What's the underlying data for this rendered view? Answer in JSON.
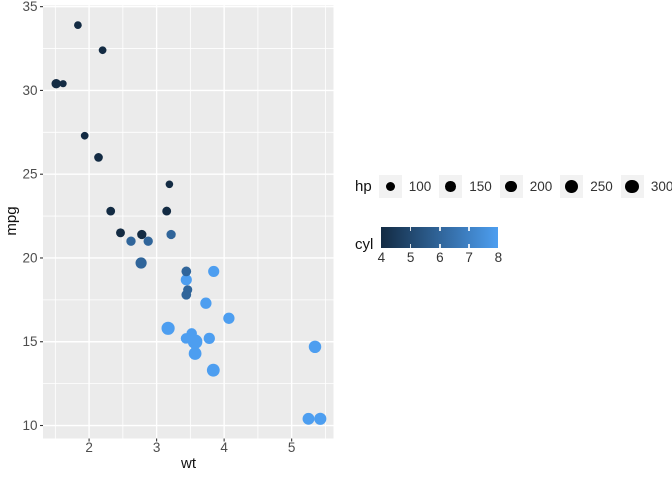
{
  "chart_data": {
    "type": "scatter",
    "title": "",
    "xlabel": "wt",
    "ylabel": "mpg",
    "xlim": [
      1.3175,
      5.6196
    ],
    "ylim": [
      9.225,
      35.075
    ],
    "x_ticks": [
      2,
      3,
      4,
      5
    ],
    "y_ticks": [
      10,
      15,
      20,
      25,
      30,
      35
    ],
    "x_minor": [
      1.5,
      2.5,
      3.5,
      4.5,
      5.5
    ],
    "y_minor": [
      12.5,
      17.5,
      22.5,
      27.5,
      32.5
    ],
    "grid": true,
    "panel_bg": "#EBEBEB",
    "grid_color": "#FFFFFF",
    "tick_color": "#333333",
    "size_field": "hp",
    "color_field": "cyl",
    "color_domain": [
      4,
      8
    ],
    "color_low": "#132B43",
    "color_high": "#4D9EF0",
    "columns": [
      "wt",
      "mpg",
      "hp",
      "cyl"
    ],
    "rows": [
      [
        2.62,
        21.0,
        110,
        6
      ],
      [
        2.875,
        21.0,
        110,
        6
      ],
      [
        2.32,
        22.8,
        93,
        4
      ],
      [
        3.215,
        21.4,
        110,
        6
      ],
      [
        3.44,
        18.7,
        175,
        8
      ],
      [
        3.46,
        18.1,
        105,
        6
      ],
      [
        3.57,
        14.3,
        245,
        8
      ],
      [
        3.19,
        24.4,
        62,
        4
      ],
      [
        3.15,
        22.8,
        95,
        4
      ],
      [
        3.44,
        19.2,
        123,
        6
      ],
      [
        3.44,
        17.8,
        123,
        6
      ],
      [
        4.07,
        16.4,
        180,
        8
      ],
      [
        3.73,
        17.3,
        180,
        8
      ],
      [
        3.78,
        15.2,
        180,
        8
      ],
      [
        5.25,
        10.4,
        205,
        8
      ],
      [
        5.424,
        10.4,
        215,
        8
      ],
      [
        5.345,
        14.7,
        230,
        8
      ],
      [
        2.2,
        32.4,
        66,
        4
      ],
      [
        1.615,
        30.4,
        52,
        4
      ],
      [
        1.835,
        33.9,
        65,
        4
      ],
      [
        2.465,
        21.5,
        97,
        4
      ],
      [
        3.52,
        15.5,
        150,
        8
      ],
      [
        3.435,
        15.2,
        150,
        8
      ],
      [
        3.84,
        13.3,
        245,
        8
      ],
      [
        3.845,
        19.2,
        175,
        8
      ],
      [
        1.935,
        27.3,
        66,
        4
      ],
      [
        2.14,
        26.0,
        91,
        4
      ],
      [
        1.513,
        30.4,
        113,
        4
      ],
      [
        3.17,
        15.8,
        264,
        8
      ],
      [
        2.77,
        19.7,
        175,
        6
      ],
      [
        3.57,
        15.0,
        335,
        8
      ],
      [
        2.78,
        21.4,
        109,
        4
      ]
    ],
    "legend_position": "right"
  },
  "legends": {
    "size": {
      "title": "hp",
      "breaks": [
        100,
        150,
        200,
        250,
        300
      ],
      "glyph_color": "#000000",
      "key_bg": "#F2F2F2"
    },
    "color": {
      "title": "cyl",
      "breaks": [
        4,
        5,
        6,
        7,
        8
      ],
      "low": "#132B43",
      "high": "#4D9EF0"
    }
  }
}
